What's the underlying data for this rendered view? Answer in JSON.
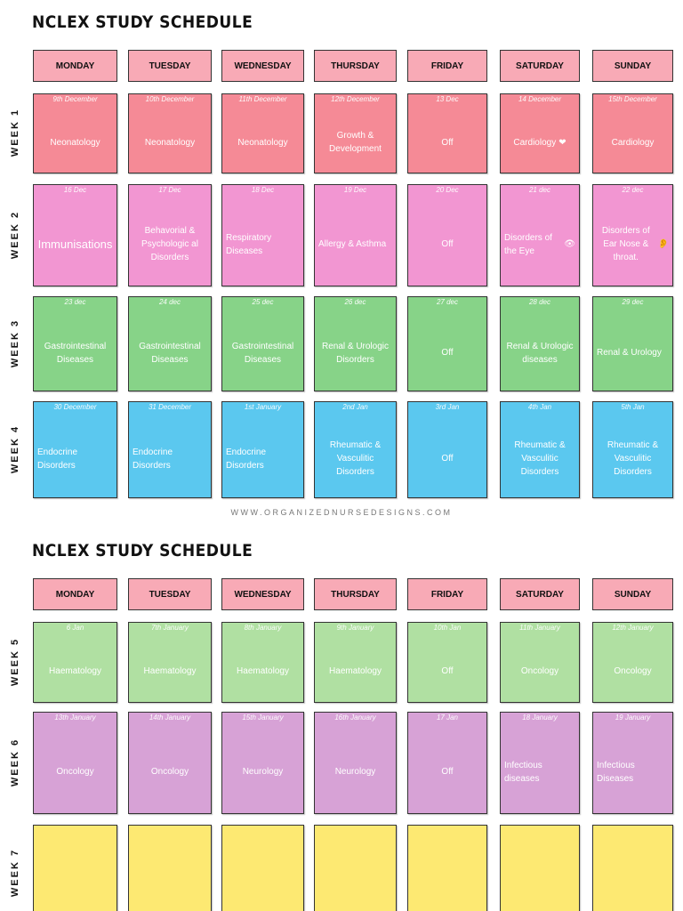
{
  "website": "WWW.ORGANIZEDNURSEDESIGNS.COM",
  "pages": [
    {
      "title": "NCLEX STUDY SCHEDULE",
      "days": [
        "MONDAY",
        "TUESDAY",
        "WEDNESDAY",
        "THURSDAY",
        "FRIDAY",
        "SATURDAY",
        "SUNDAY"
      ],
      "weeks": [
        {
          "label": "WEEK 1",
          "color": "#f58a96",
          "cells": [
            {
              "date": "9th December",
              "topic": "Neonatology"
            },
            {
              "date": "10th December",
              "topic": "Neonatology"
            },
            {
              "date": "11th December",
              "topic": "Neonatology"
            },
            {
              "date": "12th December",
              "topic": "Growth & Development"
            },
            {
              "date": "13 Dec",
              "topic": "Off"
            },
            {
              "date": "14 December",
              "topic": "Cardiology",
              "icon": "heart-icon",
              "glyph": "❤"
            },
            {
              "date": "15th December",
              "topic": "Cardiology"
            }
          ]
        },
        {
          "label": "WEEK 2",
          "color": "#f296d2",
          "cells": [
            {
              "date": "16 Dec",
              "topic": "Immunisations"
            },
            {
              "date": "17 Dec",
              "topic": "Behavorial & Psychologic al Disorders"
            },
            {
              "date": "18 Dec",
              "topic": "Respiratory Diseases"
            },
            {
              "date": "19 Dec",
              "topic": "Allergy & Asthma"
            },
            {
              "date": "20 Dec",
              "topic": "Off"
            },
            {
              "date": "21 dec",
              "topic": "Disorders of the Eye",
              "icon": "eye-icon",
              "glyph": "👁"
            },
            {
              "date": "22 dec",
              "topic": "Disorders of Ear Nose & throat.",
              "icon": "ear-icon",
              "glyph": "👂"
            }
          ]
        },
        {
          "label": "WEEK 3",
          "color": "#87d388",
          "cells": [
            {
              "date": "23 dec",
              "topic": "Gastrointestinal Diseases"
            },
            {
              "date": "24 dec",
              "topic": "Gastrointestinal Diseases"
            },
            {
              "date": "25 dec",
              "topic": "Gastrointestinal Diseases"
            },
            {
              "date": "26 dec",
              "topic": "Renal & Urologic Disorders"
            },
            {
              "date": "27 dec",
              "topic": "Off"
            },
            {
              "date": "28 dec",
              "topic": "Renal & Urologic diseases"
            },
            {
              "date": "29 dec",
              "topic": "Renal & Urology"
            }
          ]
        },
        {
          "label": "WEEK 4",
          "color": "#5bc8ef",
          "cells": [
            {
              "date": "30 December",
              "topic": "Endocrine Disorders"
            },
            {
              "date": "31 December",
              "topic": "Endocrine Disorders"
            },
            {
              "date": "1st January",
              "topic": "Endocrine Disorders"
            },
            {
              "date": "2nd Jan",
              "topic": "Rheumatic & Vasculitic Disorders"
            },
            {
              "date": "3rd Jan",
              "topic": "Off"
            },
            {
              "date": "4th Jan",
              "topic": "Rheumatic & Vasculitic Disorders"
            },
            {
              "date": "5th Jan",
              "topic": "Rheumatic & Vasculitic Disorders"
            }
          ]
        }
      ]
    },
    {
      "title": "NCLEX STUDY SCHEDULE",
      "days": [
        "MONDAY",
        "TUESDAY",
        "WEDNESDAY",
        "THURSDAY",
        "FRIDAY",
        "SATURDAY",
        "SUNDAY"
      ],
      "weeks": [
        {
          "label": "WEEK 5",
          "color": "#b0e0a2",
          "cells": [
            {
              "date": "6 Jan",
              "topic": "Haematology"
            },
            {
              "date": "7th January",
              "topic": "Haematology"
            },
            {
              "date": "8th January",
              "topic": "Haematology"
            },
            {
              "date": "9th January",
              "topic": "Haematology"
            },
            {
              "date": "10th Jan",
              "topic": "Off"
            },
            {
              "date": "11th January",
              "topic": "Oncology"
            },
            {
              "date": "12th January",
              "topic": "Oncology"
            }
          ]
        },
        {
          "label": "WEEK 6",
          "color": "#d7a2d6",
          "cells": [
            {
              "date": "13th January",
              "topic": "Oncology"
            },
            {
              "date": "14th January",
              "topic": "Oncology"
            },
            {
              "date": "15th January",
              "topic": "Neurology"
            },
            {
              "date": "16th January",
              "topic": "Neurology"
            },
            {
              "date": "17 Jan",
              "topic": "Off"
            },
            {
              "date": "18 January",
              "topic": "Infectious diseases"
            },
            {
              "date": "19 January",
              "topic": "Infectious Diseases"
            }
          ]
        },
        {
          "label": "WEEK 7",
          "color": "#fde972",
          "cells": [
            {
              "date": "",
              "topic": ""
            },
            {
              "date": "",
              "topic": ""
            },
            {
              "date": "",
              "topic": ""
            },
            {
              "date": "",
              "topic": ""
            },
            {
              "date": "",
              "topic": ""
            },
            {
              "date": "",
              "topic": ""
            },
            {
              "date": "",
              "topic": ""
            }
          ]
        }
      ]
    }
  ]
}
